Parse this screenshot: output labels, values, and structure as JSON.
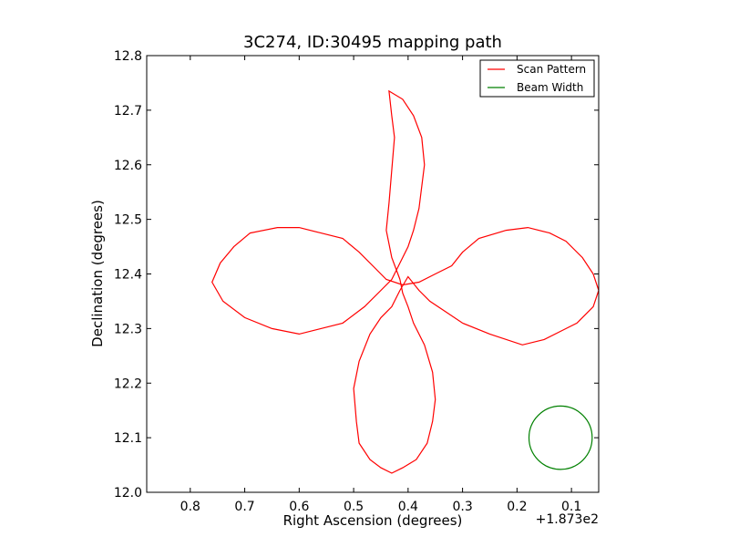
{
  "chart_data": {
    "type": "line",
    "title": "3C274, ID:30495 mapping path",
    "xlabel": "Right Ascension (degrees)",
    "ylabel": "Declination (degrees)",
    "x_offset_label": "+1.873e2",
    "xlim": [
      0.88,
      0.05
    ],
    "ylim": [
      12.0,
      12.8
    ],
    "x_ticks": [
      0.8,
      0.7,
      0.6,
      0.5,
      0.4,
      0.3,
      0.2,
      0.1
    ],
    "x_tick_labels": [
      "0.8",
      "0.7",
      "0.6",
      "0.5",
      "0.4",
      "0.3",
      "0.2",
      "0.1"
    ],
    "y_ticks": [
      12.0,
      12.1,
      12.2,
      12.3,
      12.4,
      12.5,
      12.6,
      12.7,
      12.8
    ],
    "y_tick_labels": [
      "12.0",
      "12.1",
      "12.2",
      "12.3",
      "12.4",
      "12.5",
      "12.6",
      "12.7",
      "12.8"
    ],
    "grid": false,
    "legend_position": "top-right",
    "legend": [
      {
        "label": "Scan Pattern",
        "color": "#ff0000"
      },
      {
        "label": "Beam Width",
        "color": "#008000"
      }
    ],
    "series": [
      {
        "name": "Scan Pattern",
        "color": "#ff0000",
        "points": [
          [
            0.415,
            12.39
          ],
          [
            0.43,
            12.43
          ],
          [
            0.44,
            12.48
          ],
          [
            0.435,
            12.53
          ],
          [
            0.43,
            12.59
          ],
          [
            0.425,
            12.65
          ],
          [
            0.43,
            12.69
          ],
          [
            0.435,
            12.735
          ],
          [
            0.41,
            12.72
          ],
          [
            0.39,
            12.69
          ],
          [
            0.375,
            12.65
          ],
          [
            0.37,
            12.6
          ],
          [
            0.375,
            12.56
          ],
          [
            0.38,
            12.52
          ],
          [
            0.39,
            12.48
          ],
          [
            0.4,
            12.45
          ],
          [
            0.415,
            12.42
          ],
          [
            0.43,
            12.39
          ],
          [
            0.45,
            12.37
          ],
          [
            0.48,
            12.34
          ],
          [
            0.52,
            12.31
          ],
          [
            0.56,
            12.3
          ],
          [
            0.6,
            12.29
          ],
          [
            0.65,
            12.3
          ],
          [
            0.7,
            12.32
          ],
          [
            0.74,
            12.35
          ],
          [
            0.76,
            12.385
          ],
          [
            0.745,
            12.42
          ],
          [
            0.72,
            12.45
          ],
          [
            0.69,
            12.475
          ],
          [
            0.64,
            12.485
          ],
          [
            0.6,
            12.485
          ],
          [
            0.56,
            12.475
          ],
          [
            0.52,
            12.465
          ],
          [
            0.49,
            12.44
          ],
          [
            0.46,
            12.41
          ],
          [
            0.44,
            12.39
          ],
          [
            0.41,
            12.38
          ],
          [
            0.38,
            12.385
          ],
          [
            0.35,
            12.4
          ],
          [
            0.32,
            12.415
          ],
          [
            0.3,
            12.44
          ],
          [
            0.27,
            12.465
          ],
          [
            0.22,
            12.48
          ],
          [
            0.18,
            12.485
          ],
          [
            0.14,
            12.475
          ],
          [
            0.11,
            12.46
          ],
          [
            0.08,
            12.43
          ],
          [
            0.06,
            12.4
          ],
          [
            0.05,
            12.37
          ],
          [
            0.06,
            12.34
          ],
          [
            0.09,
            12.31
          ],
          [
            0.12,
            12.295
          ],
          [
            0.15,
            12.28
          ],
          [
            0.19,
            12.27
          ],
          [
            0.25,
            12.29
          ],
          [
            0.3,
            12.31
          ],
          [
            0.33,
            12.33
          ],
          [
            0.36,
            12.35
          ],
          [
            0.38,
            12.37
          ],
          [
            0.4,
            12.395
          ],
          [
            0.415,
            12.37
          ],
          [
            0.43,
            12.34
          ],
          [
            0.45,
            12.32
          ],
          [
            0.47,
            12.29
          ],
          [
            0.49,
            12.24
          ],
          [
            0.5,
            12.19
          ],
          [
            0.495,
            12.13
          ],
          [
            0.49,
            12.09
          ],
          [
            0.47,
            12.06
          ],
          [
            0.45,
            12.045
          ],
          [
            0.43,
            12.035
          ],
          [
            0.41,
            12.045
          ],
          [
            0.385,
            12.06
          ],
          [
            0.365,
            12.09
          ],
          [
            0.355,
            12.13
          ],
          [
            0.35,
            12.17
          ],
          [
            0.355,
            12.22
          ],
          [
            0.37,
            12.27
          ],
          [
            0.39,
            12.31
          ],
          [
            0.4,
            12.34
          ],
          [
            0.41,
            12.365
          ],
          [
            0.415,
            12.39
          ]
        ]
      },
      {
        "name": "Beam Width",
        "color": "#008000",
        "circle": {
          "center": [
            0.12,
            12.1
          ],
          "radius_deg": 0.058
        }
      }
    ]
  }
}
